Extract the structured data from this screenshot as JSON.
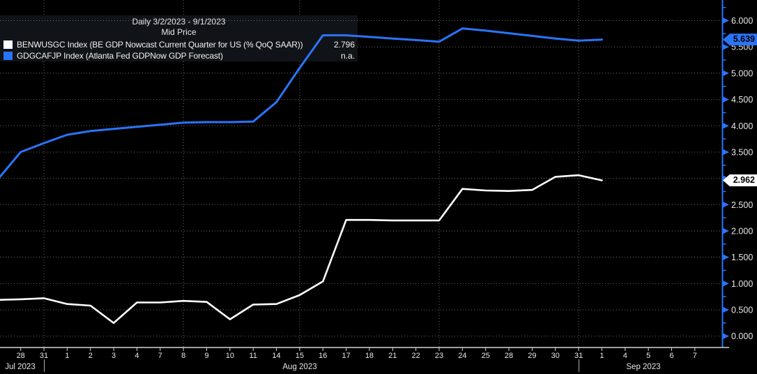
{
  "legend": {
    "title": "Daily 3/2/2023 - 9/1/2023",
    "subtitle": "Mid Price",
    "rows": [
      {
        "swatch_color": "#ffffff",
        "label": "BENWUSGC Index (BE GDP Nowcast Current Quarter for US (% QoQ SAAR))",
        "value": "2.796"
      },
      {
        "swatch_color": "#2a74fb",
        "label": "GDGCAFJP Index (Atlanta Fed GDPNow GDP Forecast)",
        "value": "n.a."
      }
    ]
  },
  "chart_data": {
    "type": "line",
    "title": "Daily 3/2/2023 - 9/1/2023",
    "subtitle": "Mid Price",
    "ylim": [
      0,
      6.4
    ],
    "y_major_step": 0.5,
    "y_tick_labels": [
      "6.000",
      "5.500",
      "5.000",
      "4.500",
      "4.000",
      "3.500",
      "3.000",
      "2.500",
      "2.000",
      "1.500",
      "1.000",
      "0.500",
      "0.000"
    ],
    "x_dates": [
      "Jul 28",
      "Jul 31",
      "Aug 1",
      "Aug 2",
      "Aug 3",
      "Aug 4",
      "Aug 7",
      "Aug 8",
      "Aug 9",
      "Aug 10",
      "Aug 11",
      "Aug 14",
      "Aug 15",
      "Aug 16",
      "Aug 17",
      "Aug 18",
      "Aug 21",
      "Aug 22",
      "Aug 23",
      "Aug 24",
      "Aug 25",
      "Aug 28",
      "Aug 29",
      "Aug 30",
      "Aug 31",
      "Sep 1",
      "Sep 4",
      "Sep 5",
      "Sep 6",
      "Sep 7"
    ],
    "x_tick_labels": [
      "28",
      "31",
      "1",
      "2",
      "3",
      "4",
      "7",
      "8",
      "9",
      "10",
      "11",
      "14",
      "15",
      "16",
      "17",
      "18",
      "21",
      "22",
      "23",
      "24",
      "25",
      "28",
      "29",
      "30",
      "31",
      "1",
      "4",
      "5",
      "6",
      "7"
    ],
    "month_labels": [
      "Jul 2023",
      "Aug 2023",
      "Sep 2023"
    ],
    "month_separator_tick_indices": [
      1,
      24
    ],
    "vertical_gridline_tick_indices": [
      1,
      7,
      12,
      18,
      24
    ],
    "series": [
      {
        "name": "BENWUSGC Index (BE GDP Nowcast Current Quarter for US (% QoQ SAAR))",
        "color": "#ffffff",
        "last_price_label": "2.962",
        "last_value": 2.962,
        "left_edge_value": 0.69,
        "values": [
          0.7,
          0.72,
          0.61,
          0.58,
          0.25,
          0.64,
          0.64,
          0.67,
          0.65,
          0.32,
          0.6,
          0.61,
          0.78,
          1.04,
          2.21,
          2.21,
          2.2,
          2.2,
          2.2,
          2.8,
          2.77,
          2.76,
          2.78,
          3.03,
          3.06,
          2.962
        ]
      },
      {
        "name": "GDGCAFJP Index (Atlanta Fed GDPNow GDP Forecast)",
        "color": "#2a74fb",
        "last_price_label": "5.639",
        "last_value": 5.639,
        "left_edge_value": 3.03,
        "values": [
          3.5,
          3.67,
          3.83,
          3.9,
          3.94,
          3.98,
          4.02,
          4.06,
          4.07,
          4.07,
          4.08,
          4.45,
          5.1,
          5.72,
          5.72,
          5.69,
          5.66,
          5.63,
          5.6,
          5.85,
          5.81,
          5.76,
          5.71,
          5.66,
          5.62,
          5.639
        ]
      }
    ]
  },
  "colors": {
    "background": "#000000",
    "panel_bg": "#101318",
    "grid": "#8f8f8f",
    "axis_blue": "#2a74fb",
    "axis_text": "#e8e8e8",
    "bottom_axis": "#d5d5d5"
  }
}
